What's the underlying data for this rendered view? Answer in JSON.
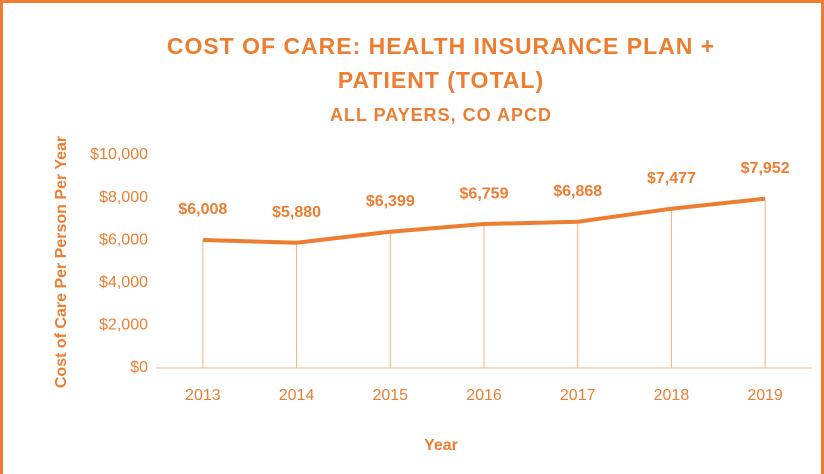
{
  "chart_data": {
    "type": "line",
    "title": [
      "COST OF CARE: HEALTH INSURANCE PLAN +",
      "PATIENT (TOTAL)"
    ],
    "subtitle": "ALL PAYERS, CO APCD",
    "x_label": "Year",
    "y_label": "Cost of Care Per Person Per Year",
    "categories": [
      "2013",
      "2014",
      "2015",
      "2016",
      "2017",
      "2018",
      "2019"
    ],
    "values": [
      6008,
      5880,
      6399,
      6759,
      6868,
      7477,
      7952
    ],
    "value_labels": [
      "$6,008",
      "$5,880",
      "$6,399",
      "$6,759",
      "$6,868",
      "$7,477",
      "$7,952"
    ],
    "color": "#ED7D31",
    "drop_lines": true,
    "ylim": [
      0,
      10000
    ],
    "yticks": [
      {
        "value": 0,
        "label": "$0"
      },
      {
        "value": 2000,
        "label": "$2,000"
      },
      {
        "value": 4000,
        "label": "$4,000"
      },
      {
        "value": 6000,
        "label": "$6,000"
      },
      {
        "value": 8000,
        "label": "$8,000"
      },
      {
        "value": 10000,
        "label": "$10,000"
      }
    ]
  }
}
